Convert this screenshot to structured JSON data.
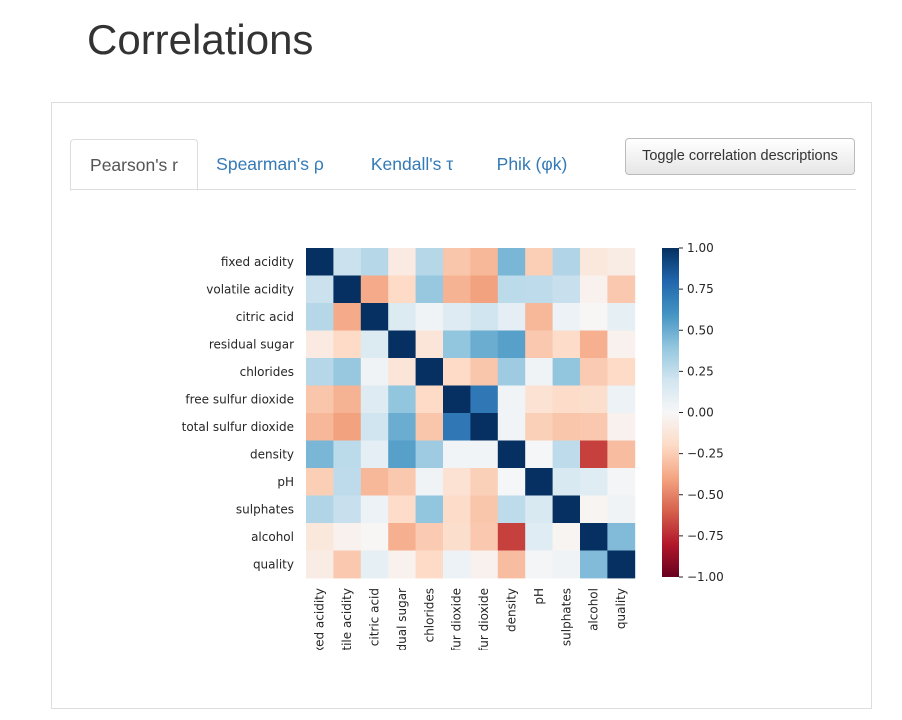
{
  "page": {
    "title": "Correlations"
  },
  "tabs": [
    {
      "label": "Pearson's r",
      "active": true
    },
    {
      "label": "Spearman's ρ",
      "active": false
    },
    {
      "label": "Kendall's τ",
      "active": false
    },
    {
      "label": "Phik (φk)",
      "active": false
    }
  ],
  "toggle_button": {
    "label": "Toggle correlation descriptions"
  },
  "chart_data": {
    "type": "heatmap",
    "variables": [
      "fixed acidity",
      "volatile acidity",
      "citric acid",
      "residual sugar",
      "chlorides",
      "free sulfur dioxide",
      "total sulfur dioxide",
      "density",
      "pH",
      "sulphates",
      "alcohol",
      "quality"
    ],
    "x_tick_labels": [
      "fixed acidity",
      "volatile acidity",
      "citric acid",
      "residual sugar",
      "chlorides",
      "sulfur dioxide",
      "sulfur dioxide",
      "density",
      "pH",
      "sulphates",
      "alcohol",
      "quality"
    ],
    "matrix": [
      [
        1.0,
        0.22,
        0.29,
        -0.09,
        0.29,
        -0.28,
        -0.33,
        0.46,
        -0.25,
        0.3,
        -0.11,
        -0.08
      ],
      [
        0.22,
        1.0,
        -0.38,
        -0.2,
        0.38,
        -0.35,
        -0.41,
        0.27,
        0.26,
        0.23,
        -0.04,
        -0.27
      ],
      [
        0.29,
        -0.38,
        1.0,
        0.14,
        0.04,
        0.13,
        0.2,
        0.1,
        -0.33,
        0.06,
        -0.01,
        0.09
      ],
      [
        -0.09,
        -0.2,
        0.14,
        1.0,
        -0.13,
        0.4,
        0.5,
        0.55,
        -0.27,
        -0.19,
        -0.36,
        -0.04
      ],
      [
        0.29,
        0.38,
        0.04,
        -0.13,
        1.0,
        -0.2,
        -0.28,
        0.36,
        0.04,
        0.4,
        -0.26,
        -0.2
      ],
      [
        -0.28,
        -0.35,
        0.13,
        0.4,
        -0.2,
        1.0,
        0.72,
        0.03,
        -0.15,
        -0.19,
        -0.18,
        0.06
      ],
      [
        -0.33,
        -0.41,
        0.2,
        0.5,
        -0.28,
        0.72,
        1.0,
        0.03,
        -0.24,
        -0.28,
        -0.27,
        -0.04
      ],
      [
        0.46,
        0.27,
        0.1,
        0.55,
        0.36,
        0.03,
        0.03,
        1.0,
        0.01,
        0.26,
        -0.69,
        -0.31
      ],
      [
        -0.25,
        0.26,
        -0.33,
        -0.27,
        0.04,
        -0.15,
        -0.24,
        0.01,
        1.0,
        0.16,
        0.12,
        0.02
      ],
      [
        0.3,
        0.23,
        0.06,
        -0.19,
        0.4,
        -0.19,
        -0.28,
        0.26,
        0.16,
        1.0,
        -0.02,
        0.04
      ],
      [
        -0.11,
        -0.04,
        -0.01,
        -0.36,
        -0.26,
        -0.18,
        -0.27,
        -0.69,
        0.12,
        -0.02,
        1.0,
        0.44
      ],
      [
        -0.08,
        -0.27,
        0.09,
        -0.04,
        -0.2,
        0.06,
        -0.04,
        -0.31,
        0.02,
        0.04,
        0.44,
        1.0
      ]
    ],
    "vmin": -1.0,
    "vmax": 1.0,
    "colormap": "RdBu",
    "colorbar_ticks": [
      "1.00",
      "0.75",
      "0.50",
      "0.25",
      "0.00",
      "−0.25",
      "−0.50",
      "−0.75",
      "−1.00"
    ],
    "colorbar_tick_values": [
      1.0,
      0.75,
      0.5,
      0.25,
      0.0,
      -0.25,
      -0.5,
      -0.75,
      -1.0
    ]
  }
}
